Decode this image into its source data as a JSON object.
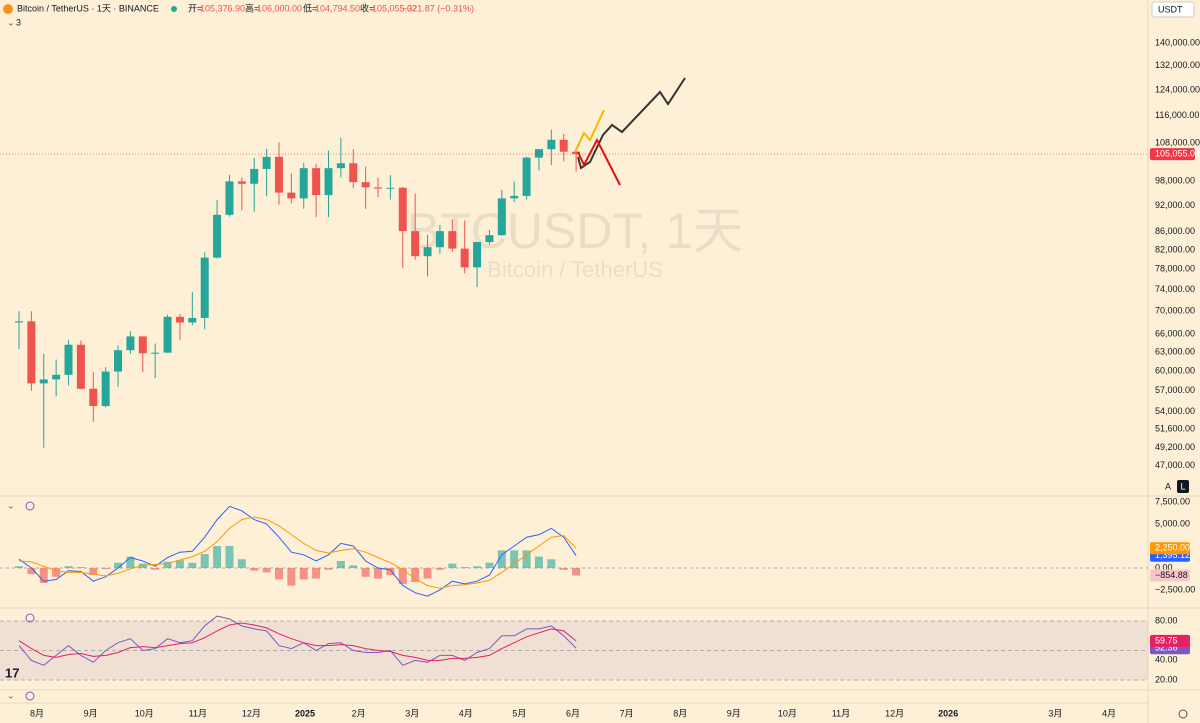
{
  "header": {
    "symbol": "Bitcoin / TetherUS · 1天 · BINANCE",
    "ohlc": [
      {
        "label": "开=",
        "value": "105,376.90"
      },
      {
        "label": "高=",
        "value": "106,000.00"
      },
      {
        "label": "低=",
        "value": "104,794.50"
      },
      {
        "label": "收=",
        "value": "105,055.02"
      }
    ],
    "change": "−321.87 (−0.31%)",
    "indicator_count": "3",
    "currency": "USDT",
    "buttons": [
      "A",
      "L"
    ]
  },
  "watermark": {
    "title": "BTCUSDT, 1天",
    "subtitle": "Bitcoin / TetherUS"
  },
  "xticks": [
    "8月",
    "9月",
    "10月",
    "11月",
    "12月",
    "2025",
    "2月",
    "3月",
    "4月",
    "5月",
    "6月",
    "7月",
    "8月",
    "9月",
    "10月",
    "11月",
    "12月",
    "2026",
    null,
    "3月",
    "4月"
  ],
  "chart_data": [
    {
      "type": "candlestick",
      "log": true,
      "up_color": "#26a69a",
      "down_color": "#ef5350",
      "open": [
        68000,
        68200,
        58100,
        58700,
        59400,
        64200,
        57300,
        54800,
        59900,
        63300,
        65600,
        62800,
        62900,
        69000,
        68000,
        68800,
        80400,
        89800,
        97900,
        97300,
        101100,
        104300,
        95100,
        93700,
        101300,
        94500,
        101300,
        102600,
        97700,
        96400,
        96100,
        96300,
        86100,
        80700,
        82600,
        86100,
        82300,
        78400,
        83700,
        85200,
        93700,
        94300,
        104100,
        106400,
        109000,
        105700
      ],
      "high": [
        70000,
        70000,
        62700,
        61800,
        65000,
        64900,
        59800,
        60600,
        64100,
        66500,
        65600,
        64400,
        69400,
        69500,
        73600,
        81500,
        93300,
        99600,
        98900,
        104000,
        106500,
        108300,
        99900,
        102700,
        102500,
        106000,
        109600,
        106400,
        101700,
        98800,
        99500,
        96500,
        94900,
        85300,
        87500,
        88800,
        88500,
        83600,
        86400,
        95800,
        97900,
        104300,
        105800,
        111900,
        110700,
        106800
      ],
      "low": [
        63500,
        57000,
        49200,
        56200,
        57800,
        57200,
        52600,
        54600,
        57600,
        62700,
        59800,
        58900,
        62900,
        65000,
        67500,
        66800,
        80200,
        89400,
        90800,
        90500,
        94200,
        92200,
        92500,
        91200,
        89300,
        89300,
        98900,
        96200,
        91200,
        94000,
        93400,
        78200,
        80000,
        76600,
        81200,
        81600,
        77200,
        74500,
        83100,
        85100,
        92800,
        93400,
        100700,
        102100,
        103100,
        100400
      ],
      "close": [
        68200,
        58100,
        58700,
        59400,
        64200,
        57300,
        54800,
        59900,
        63300,
        65600,
        62800,
        62900,
        69000,
        68000,
        68800,
        80400,
        89800,
        97900,
        97300,
        101100,
        104300,
        95100,
        93700,
        101300,
        94500,
        101300,
        102600,
        97700,
        96400,
        96100,
        96300,
        86100,
        80700,
        82600,
        86100,
        82300,
        78400,
        83700,
        85200,
        93700,
        94300,
        104100,
        106400,
        109000,
        105700,
        105055.02
      ],
      "last_price": {
        "value": 105055.02,
        "label": "105,055.02"
      },
      "last_color": "#f23645",
      "ylim": [
        43550,
        149300
      ],
      "yticks": [
        {
          "value": 140000,
          "label": "140,000.00"
        },
        {
          "value": 132000,
          "label": "132,000.00"
        },
        {
          "value": 124000,
          "label": "124,000.00"
        },
        {
          "value": 116000,
          "label": "116,000.00"
        },
        {
          "value": 108000,
          "label": "108,000.00"
        },
        {
          "value": 98000,
          "label": "98,000.00"
        },
        {
          "value": 92000,
          "label": "92,000.00"
        },
        {
          "value": 86000,
          "label": "86,000.00"
        },
        {
          "value": 82000,
          "label": "82,000.00"
        },
        {
          "value": 78000,
          "label": "78,000.00"
        },
        {
          "value": 74000,
          "label": "74,000.00"
        },
        {
          "value": 70000,
          "label": "70,000.00"
        },
        {
          "value": 66000,
          "label": "66,000.00"
        },
        {
          "value": 63000,
          "label": "63,000.00"
        },
        {
          "value": 60000,
          "label": "60,000.00"
        },
        {
          "value": 57000,
          "label": "57,000.00"
        },
        {
          "value": 54000,
          "label": "54,000.00"
        },
        {
          "value": 51600,
          "label": "51,600.00"
        },
        {
          "value": 49200,
          "label": "49,200.00"
        },
        {
          "value": 47000,
          "label": "47,000.00"
        }
      ]
    },
    {
      "type": "macd",
      "ylim": [
        -4430,
        8070
      ],
      "yticks": [
        {
          "value": 7500,
          "label": "7,500.00"
        },
        {
          "value": 5000,
          "label": "5,000.00"
        },
        {
          "value": 0,
          "label": "0.00"
        },
        {
          "value": -2500,
          "label": "−2,500.00"
        }
      ],
      "histogram": {
        "up_color": "#26a69a",
        "down_color": "#ef5350",
        "values": [
          200,
          -700,
          -1700,
          -1000,
          200,
          100,
          -800,
          -100,
          600,
          1300,
          500,
          -200,
          700,
          900,
          600,
          1600,
          2500,
          2500,
          1000,
          -300,
          -500,
          -1300,
          -2000,
          -1300,
          -1200,
          -200,
          800,
          300,
          -1000,
          -1200,
          -800,
          -1800,
          -1600,
          -1200,
          -200,
          500,
          100,
          200,
          600,
          2000,
          2000,
          2000,
          1300,
          1000,
          -200,
          -854.88
        ],
        "value_labels": [
          null,
          null,
          null,
          null,
          null,
          null,
          null,
          null,
          null,
          null,
          null,
          null,
          null,
          null,
          null,
          null,
          null,
          null,
          null,
          null,
          null,
          null,
          null,
          null,
          null,
          null,
          null,
          null,
          null,
          null,
          null,
          null,
          null,
          null,
          null,
          null,
          null,
          null,
          null,
          null,
          null,
          null,
          null,
          null,
          null,
          "−854.88"
        ]
      },
      "series": [
        {
          "color": "#2962ff",
          "values": [
            1000,
            0,
            -1500,
            -1300,
            -300,
            -400,
            -1500,
            -1000,
            0,
            1200,
            800,
            200,
            1200,
            1800,
            1900,
            3500,
            5500,
            7000,
            6500,
            5500,
            5000,
            3500,
            1800,
            1500,
            800,
            1500,
            2800,
            2500,
            800,
            0,
            -200,
            -2000,
            -2800,
            -3200,
            -2500,
            -1500,
            -1800,
            -1500,
            -800,
            1500,
            2500,
            3500,
            3800,
            4500,
            3500,
            1395.12
          ],
          "value_labels": [
            null,
            null,
            null,
            null,
            null,
            null,
            null,
            null,
            null,
            null,
            null,
            null,
            null,
            null,
            null,
            null,
            null,
            null,
            null,
            null,
            null,
            null,
            null,
            null,
            null,
            null,
            null,
            null,
            null,
            null,
            null,
            null,
            null,
            null,
            null,
            null,
            null,
            null,
            null,
            null,
            null,
            null,
            null,
            null,
            null,
            "1,395.12"
          ]
        },
        {
          "color": "#ff9800",
          "values": [
            800,
            700,
            200,
            -300,
            -500,
            -500,
            -700,
            -900,
            -600,
            -100,
            300,
            400,
            500,
            900,
            1300,
            1900,
            3000,
            4500,
            5500,
            5800,
            5500,
            4800,
            3800,
            2800,
            2000,
            1700,
            2000,
            2200,
            1800,
            1200,
            600,
            -200,
            -1200,
            -2000,
            -2300,
            -2000,
            -1900,
            -1700,
            -1400,
            -500,
            500,
            1500,
            2500,
            3500,
            3700,
            2250
          ],
          "value_labels": [
            null,
            null,
            null,
            null,
            null,
            null,
            null,
            null,
            null,
            null,
            null,
            null,
            null,
            null,
            null,
            null,
            null,
            null,
            null,
            null,
            null,
            null,
            null,
            null,
            null,
            null,
            null,
            null,
            null,
            null,
            null,
            null,
            null,
            null,
            null,
            null,
            null,
            null,
            null,
            null,
            null,
            null,
            null,
            null,
            null,
            "2,250.00"
          ]
        }
      ]
    },
    {
      "type": "rsi",
      "ylim": [
        11.9,
        91.2
      ],
      "levels": [
        80,
        50,
        20
      ],
      "band_color": "#7e57c2",
      "yticks": [
        {
          "value": 80,
          "label": "80.00"
        },
        {
          "value": 40,
          "label": "40.00"
        },
        {
          "value": 20,
          "label": "20.00"
        }
      ],
      "series": [
        {
          "color": "#7e57c2",
          "values": [
            55,
            40,
            35,
            45,
            55,
            45,
            38,
            50,
            58,
            62,
            50,
            52,
            62,
            58,
            60,
            75,
            85,
            82,
            75,
            72,
            70,
            55,
            52,
            58,
            50,
            57,
            58,
            50,
            48,
            48,
            50,
            35,
            40,
            38,
            45,
            45,
            40,
            48,
            52,
            65,
            65,
            72,
            72,
            75,
            65,
            52.36
          ],
          "value_labels": [
            null,
            null,
            null,
            null,
            null,
            null,
            null,
            null,
            null,
            null,
            null,
            null,
            null,
            null,
            null,
            null,
            null,
            null,
            null,
            null,
            null,
            null,
            null,
            null,
            null,
            null,
            null,
            null,
            null,
            null,
            null,
            null,
            null,
            null,
            null,
            null,
            null,
            null,
            null,
            null,
            null,
            null,
            null,
            null,
            null,
            "52.36"
          ]
        },
        {
          "color": "#e91e63",
          "values": [
            60,
            52,
            45,
            43,
            46,
            47,
            44,
            45,
            48,
            53,
            54,
            53,
            55,
            57,
            58,
            63,
            70,
            76,
            78,
            76,
            73,
            67,
            62,
            58,
            55,
            55,
            56,
            55,
            52,
            50,
            49,
            45,
            43,
            40,
            40,
            42,
            42,
            43,
            45,
            52,
            58,
            64,
            68,
            72,
            70,
            59.75
          ],
          "value_labels": [
            null,
            null,
            null,
            null,
            null,
            null,
            null,
            null,
            null,
            null,
            null,
            null,
            null,
            null,
            null,
            null,
            null,
            null,
            null,
            null,
            null,
            null,
            null,
            null,
            null,
            null,
            null,
            null,
            null,
            null,
            null,
            null,
            null,
            null,
            null,
            null,
            null,
            null,
            null,
            null,
            null,
            null,
            null,
            null,
            null,
            "59.75"
          ]
        }
      ]
    }
  ]
}
